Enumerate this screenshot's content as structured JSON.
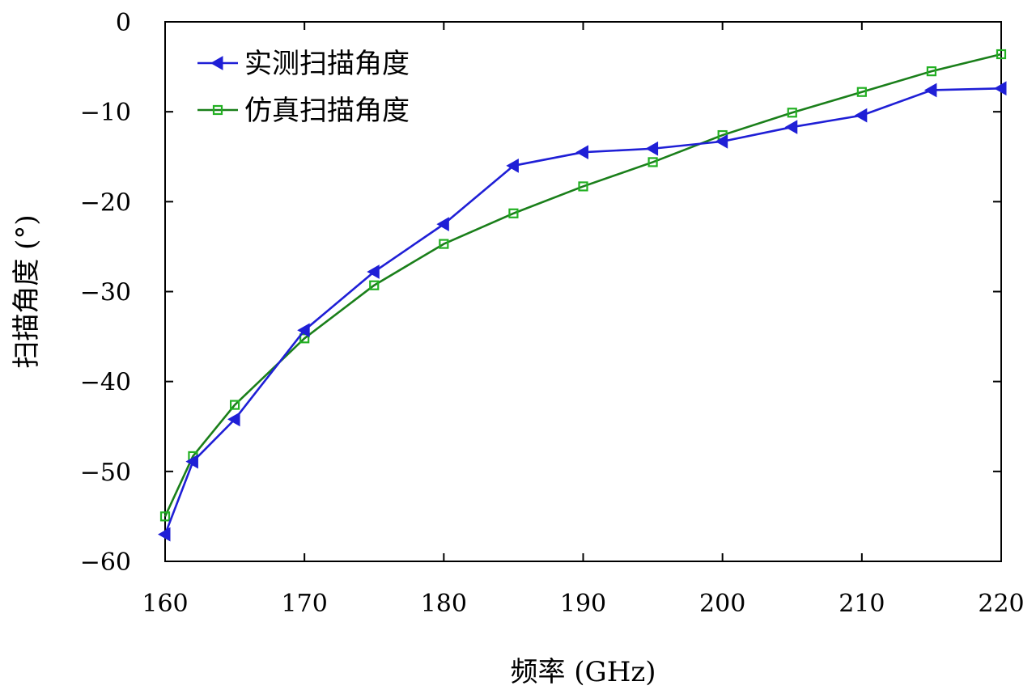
{
  "chart_data": {
    "type": "line",
    "title": "",
    "xlabel": "频率 (GHz)",
    "ylabel": "扫描角度 (°)",
    "xlim": [
      160,
      220
    ],
    "ylim": [
      -60,
      0
    ],
    "xticks": [
      160,
      170,
      180,
      190,
      200,
      210,
      220
    ],
    "yticks": [
      0,
      -10,
      -20,
      -30,
      -40,
      -50,
      -60
    ],
    "xtick_labels": [
      "160",
      "170",
      "180",
      "190",
      "200",
      "210",
      "220"
    ],
    "ytick_labels": [
      "0",
      "−10",
      "−20",
      "−30",
      "−40",
      "−50",
      "−60"
    ],
    "grid": false,
    "legend_position": "top-left",
    "series": [
      {
        "name": "实测扫描角度",
        "color": "#1f1fd6",
        "marker": "triangle-left",
        "x": [
          160,
          162,
          165,
          170,
          175,
          180,
          185,
          190,
          195,
          200,
          205,
          210,
          215,
          220
        ],
        "y": [
          -57.0,
          -48.9,
          -44.2,
          -34.3,
          -27.8,
          -22.5,
          -16.0,
          -14.5,
          -14.1,
          -13.3,
          -11.7,
          -10.4,
          -7.6,
          -7.4
        ]
      },
      {
        "name": "仿真扫描角度",
        "color": "#1a7f1a",
        "marker_color": "#22b022",
        "marker": "square",
        "x": [
          160,
          162,
          165,
          170,
          175,
          180,
          185,
          190,
          195,
          200,
          205,
          210,
          215,
          220
        ],
        "y": [
          -55.0,
          -48.3,
          -42.6,
          -35.2,
          -29.3,
          -24.7,
          -21.3,
          -18.3,
          -15.6,
          -12.6,
          -10.1,
          -7.8,
          -5.5,
          -3.6
        ]
      }
    ]
  }
}
